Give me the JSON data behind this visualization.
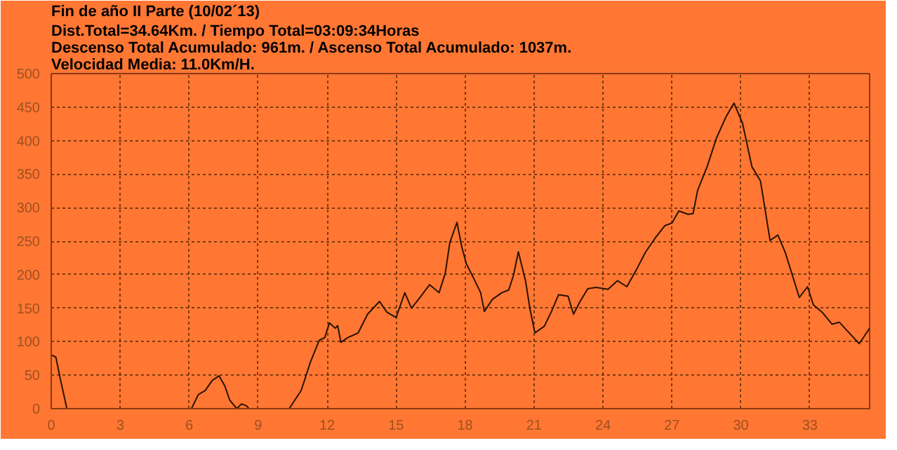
{
  "chart_data": {
    "type": "line",
    "title": "Fin de año II Parte (10/02´13)",
    "subtitle": "Dist.Total=34.64Km. / Tiempo Total=03:09:34Horas\nDescenso Total Acumulado: 961m. / Ascenso Total Acumulado: 1037m.\nVelocidad Media: 11.0Km/H.",
    "series": [
      {
        "color": "#2a1200",
        "x": [
          0,
          0.2,
          0.41,
          0.68,
          0.9,
          5.9,
          6.1,
          6.4,
          6.7,
          7.0,
          7.3,
          7.55,
          7.76,
          8.07,
          8.28,
          8.5,
          8.6,
          9.5,
          10.35,
          10.87,
          11.28,
          11.66,
          11.9,
          12.1,
          12.36,
          12.46,
          12.6,
          12.9,
          13.35,
          13.76,
          14.28,
          14.6,
          15.0,
          15.38,
          15.67,
          16.04,
          16.46,
          16.87,
          17.14,
          17.34,
          17.65,
          17.86,
          18.06,
          18.37,
          18.68,
          18.84,
          19.19,
          19.6,
          19.9,
          20.1,
          20.32,
          20.63,
          20.83,
          21.04,
          21.45,
          21.76,
          22.07,
          22.48,
          22.72,
          22.99,
          23.34,
          23.7,
          24.22,
          24.63,
          25.04,
          25.45,
          25.86,
          26.28,
          26.69,
          27.0,
          27.3,
          27.71,
          27.92,
          28.12,
          28.53,
          28.94,
          29.36,
          29.7,
          30.07,
          30.48,
          30.85,
          31.27,
          31.61,
          31.92,
          32.54,
          32.9,
          33.15,
          33.56,
          33.97,
          34.28,
          34.9,
          35.15,
          35.6
        ],
        "values": [
          80,
          77,
          42,
          0,
          null,
          null,
          0,
          21,
          27,
          42,
          49,
          34,
          13,
          0,
          7,
          4,
          0,
          null,
          0,
          27,
          70,
          102,
          106,
          128,
          120,
          124,
          99,
          106,
          113,
          141,
          160,
          144,
          136,
          173,
          150,
          166,
          185,
          173,
          202,
          248,
          278,
          241,
          216,
          195,
          173,
          145,
          163,
          173,
          177,
          198,
          234,
          191,
          148,
          113,
          123,
          145,
          170,
          168,
          141,
          159,
          179,
          181,
          178,
          191,
          182,
          207,
          234,
          255,
          273,
          277,
          295,
          290,
          291,
          326,
          361,
          404,
          436,
          456,
          426,
          361,
          340,
          251,
          259,
          234,
          166,
          182,
          155,
          143,
          126,
          129,
          106,
          97,
          120
        ]
      }
    ],
    "xlim": [
      0,
      35.6
    ],
    "ylim": [
      0,
      500
    ],
    "xticks": [
      0,
      3,
      6,
      9,
      12,
      15,
      18,
      21,
      24,
      27,
      30,
      33
    ],
    "yticks": [
      0,
      50,
      100,
      150,
      200,
      250,
      300,
      350,
      400,
      450,
      500
    ],
    "grid": true,
    "line_style": "solid"
  }
}
